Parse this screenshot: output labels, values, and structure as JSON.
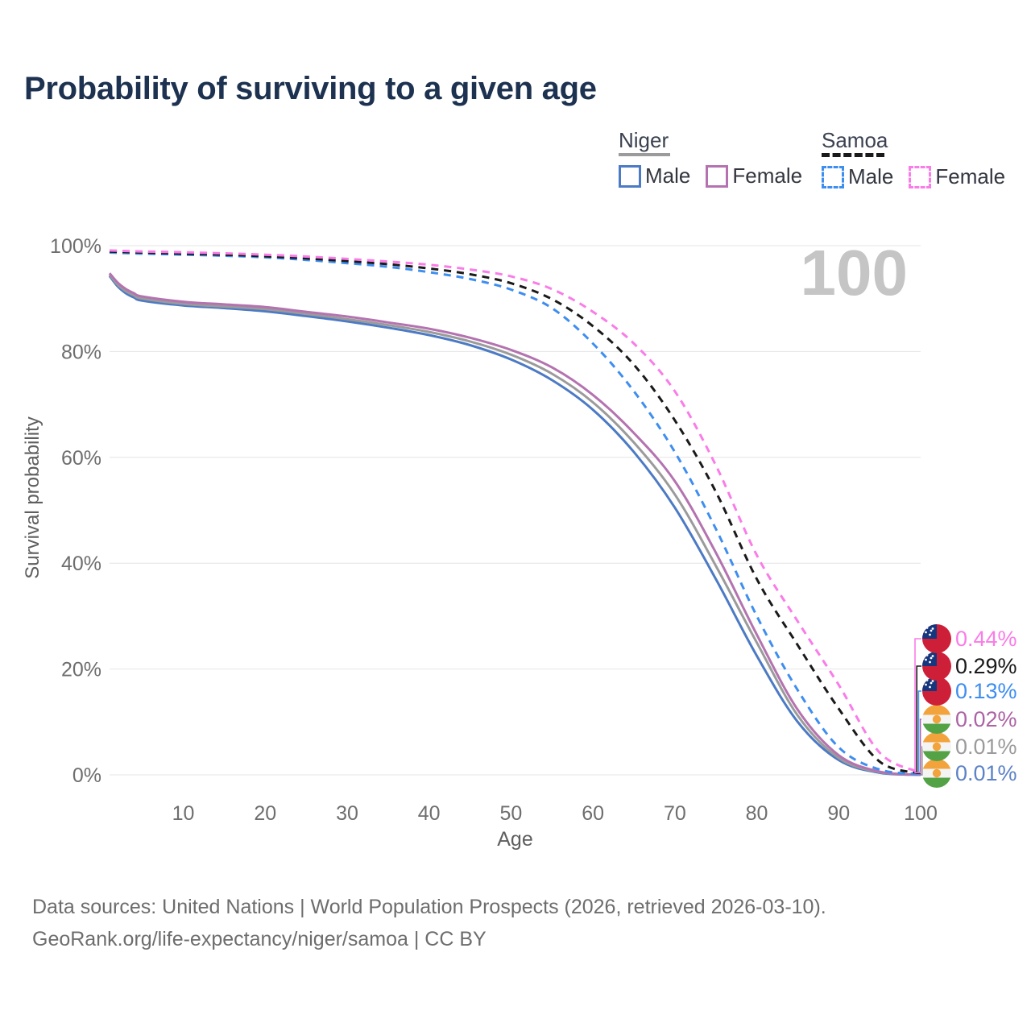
{
  "title": "Probability of surviving to a given age",
  "legend": {
    "groups": [
      {
        "id": "niger",
        "label": "Niger",
        "underline_style": "solid",
        "underline_color": "#9b9b9b",
        "items": [
          {
            "label": "Male",
            "color": "#4c7ac4",
            "style": "solid"
          },
          {
            "label": "Female",
            "color": "#b473b0",
            "style": "solid"
          }
        ]
      },
      {
        "id": "samoa",
        "label": "Samoa",
        "underline_style": "dashed",
        "underline_color": "#1a1a1a",
        "items": [
          {
            "label": "Male",
            "color": "#3e8ef0",
            "style": "dashed"
          },
          {
            "label": "Female",
            "color": "#fa7ce8",
            "style": "dashed"
          }
        ]
      }
    ]
  },
  "watermark_age": "100",
  "footer": {
    "line1": "Data sources: United Nations | World Population Prospects (2026, retrieved 2026-03-10).",
    "line2": "GeoRank.org/life-expectancy/niger/samoa | CC BY"
  },
  "chart_data": {
    "type": "line",
    "title": "Probability of surviving to a given age",
    "xlabel": "Age",
    "ylabel": "Survival probability",
    "x_range": [
      1,
      100
    ],
    "y_range": [
      0,
      100
    ],
    "x_ticks": [
      10,
      20,
      30,
      40,
      50,
      60,
      70,
      80,
      90,
      100
    ],
    "y_ticks": [
      0,
      20,
      40,
      60,
      80,
      100
    ],
    "y_tick_suffix": "%",
    "grid": "horizontal",
    "legend_position": "top-right",
    "ages": [
      1,
      2,
      3,
      4,
      5,
      10,
      15,
      20,
      25,
      30,
      35,
      40,
      45,
      50,
      55,
      60,
      65,
      70,
      75,
      80,
      85,
      90,
      95,
      100
    ],
    "series": [
      {
        "id": "niger-male",
        "name": "Niger Male",
        "country": "Niger",
        "sex": "Male",
        "color": "#4c7ac4",
        "label_color": "#5c82c8",
        "line_style": "solid",
        "flag": "niger",
        "end_label": "0.01%",
        "label_slot": 5,
        "values": [
          94.3,
          92.3,
          91.0,
          90.2,
          89.6,
          88.7,
          88.2,
          87.6,
          86.7,
          85.7,
          84.5,
          83.1,
          81.2,
          78.5,
          74.6,
          69.0,
          61.0,
          50.5,
          37.0,
          22.5,
          10.0,
          2.8,
          0.4,
          0.01
        ]
      },
      {
        "id": "niger",
        "name": "Niger",
        "country": "Niger",
        "sex": "Both",
        "color": "#9b9b9b",
        "label_color": "#9b9b9b",
        "line_style": "solid",
        "flag": "niger",
        "end_label": "0.01%",
        "label_slot": 4,
        "values": [
          94.5,
          92.6,
          91.4,
          90.6,
          90.0,
          89.0,
          88.5,
          88.0,
          87.1,
          86.1,
          85.0,
          83.7,
          81.9,
          79.4,
          75.8,
          70.4,
          62.8,
          53.0,
          39.5,
          25.0,
          11.2,
          3.2,
          0.5,
          0.01
        ]
      },
      {
        "id": "niger-female",
        "name": "Niger Female",
        "country": "Niger",
        "sex": "Female",
        "color": "#b473b0",
        "label_color": "#ac63a4",
        "line_style": "solid",
        "flag": "niger",
        "end_label": "0.02%",
        "label_slot": 3,
        "values": [
          94.8,
          93.0,
          91.8,
          91.0,
          90.4,
          89.4,
          88.9,
          88.4,
          87.5,
          86.6,
          85.5,
          84.3,
          82.6,
          80.3,
          77.0,
          71.8,
          64.6,
          55.5,
          42.0,
          26.5,
          12.3,
          3.7,
          0.6,
          0.02
        ]
      },
      {
        "id": "samoa-male",
        "name": "Samoa Male",
        "country": "Samoa",
        "sex": "Male",
        "color": "#3e8ef0",
        "label_color": "#3e8ef0",
        "line_style": "dashed",
        "flag": "samoa",
        "end_label": "0.13%",
        "label_slot": 2,
        "values": [
          98.7,
          98.65,
          98.6,
          98.55,
          98.5,
          98.3,
          98.1,
          97.8,
          97.3,
          96.7,
          96.0,
          95.0,
          93.7,
          91.7,
          88.2,
          81.5,
          72.5,
          61.0,
          46.5,
          30.0,
          16.0,
          5.2,
          1.0,
          0.13
        ]
      },
      {
        "id": "samoa",
        "name": "Samoa",
        "country": "Samoa",
        "sex": "Both",
        "color": "#1a1a1a",
        "label_color": "#1a1a1a",
        "line_style": "dashed",
        "flag": "samoa",
        "end_label": "0.29%",
        "label_slot": 1,
        "values": [
          98.9,
          98.85,
          98.8,
          98.75,
          98.7,
          98.5,
          98.3,
          98.0,
          97.6,
          97.1,
          96.5,
          95.7,
          94.6,
          92.9,
          89.9,
          84.8,
          77.5,
          67.0,
          53.5,
          37.0,
          24.5,
          12.5,
          2.5,
          0.29
        ]
      },
      {
        "id": "samoa-female",
        "name": "Samoa Female",
        "country": "Samoa",
        "sex": "Female",
        "color": "#fa7ce8",
        "label_color": "#fa7ce8",
        "line_style": "dashed",
        "flag": "samoa",
        "end_label": "0.44%",
        "label_slot": 0,
        "values": [
          99.1,
          99.05,
          99.0,
          98.95,
          98.9,
          98.75,
          98.55,
          98.3,
          97.95,
          97.5,
          97.0,
          96.4,
          95.5,
          94.2,
          91.8,
          87.5,
          81.5,
          72.5,
          58.5,
          41.5,
          29.0,
          17.0,
          4.2,
          0.44
        ]
      }
    ],
    "flag_colors": {
      "samoa_red": "#ce1f38",
      "samoa_blue": "#16367e",
      "niger_orange": "#f2a33c",
      "niger_white": "#f4f4f4",
      "niger_green": "#53a346"
    },
    "grid_color": "#e4e4e4",
    "tick_color": "#6e6e6e",
    "axis_label_color": "#5f5f5f",
    "watermark_color": "#c5c5c5"
  }
}
